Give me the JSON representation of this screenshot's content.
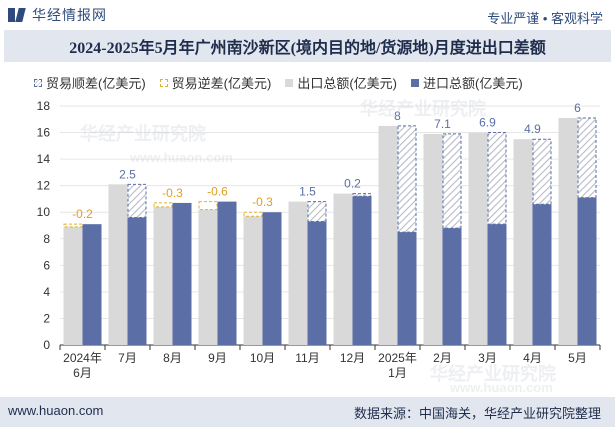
{
  "brand": {
    "name": "华经情报网",
    "tagline": "专业严谨 • 客观科学"
  },
  "title": "2024-2025年5月年广州南沙新区(境内目的地/货源地)月度进出口差额",
  "legend": {
    "surplus": "贸易顺差(亿美元)",
    "deficit": "贸易逆差(亿美元)",
    "export": "出口总额(亿美元)",
    "import": "进口总额(亿美元)"
  },
  "colors": {
    "export": "#d9d9d9",
    "import": "#5b6fa6",
    "surplus_border": "#5b6fa6",
    "deficit_border": "#e0b030",
    "surplus_label": "#5b6fa6",
    "deficit_label": "#e0a020"
  },
  "footer": {
    "website": "www.huaon.com",
    "source": "数据来源：中国海关，华经产业研究院整理"
  },
  "watermarks": [
    "华经产业研究院",
    "www.huaon.com"
  ],
  "chart_data": {
    "type": "bar",
    "categories": [
      [
        "2024年",
        "6月"
      ],
      [
        "7月"
      ],
      [
        "8月"
      ],
      [
        "9月"
      ],
      [
        "10月"
      ],
      [
        "11月"
      ],
      [
        "12月"
      ],
      [
        "2025年",
        "1月"
      ],
      [
        "2月"
      ],
      [
        "3月"
      ],
      [
        "4月"
      ],
      [
        "5月"
      ]
    ],
    "series": [
      {
        "name": "出口总额(亿美元)",
        "values": [
          8.9,
          12.1,
          10.4,
          10.2,
          9.7,
          10.8,
          11.4,
          16.5,
          15.9,
          16.0,
          15.5,
          17.1
        ]
      },
      {
        "name": "进口总额(亿美元)",
        "values": [
          9.1,
          9.6,
          10.7,
          10.8,
          10.0,
          9.3,
          11.2,
          8.5,
          8.8,
          9.1,
          10.6,
          11.1
        ]
      }
    ],
    "balance": {
      "values": [
        -0.2,
        2.5,
        -0.3,
        -0.6,
        -0.3,
        1.5,
        0.2,
        8,
        7.1,
        6.9,
        4.9,
        6
      ],
      "labels": [
        "-0.2",
        "2.5",
        "-0.3",
        "-0.6",
        "-0.3",
        "1.5",
        "0.2",
        "8",
        "7.1",
        "6.9",
        "4.9",
        "6"
      ]
    },
    "yticks": [
      "0",
      "2",
      "4",
      "6",
      "8",
      "10",
      "12",
      "14",
      "16",
      "18"
    ],
    "ylim": [
      0,
      18
    ],
    "grid": true,
    "legend_position": "top"
  }
}
